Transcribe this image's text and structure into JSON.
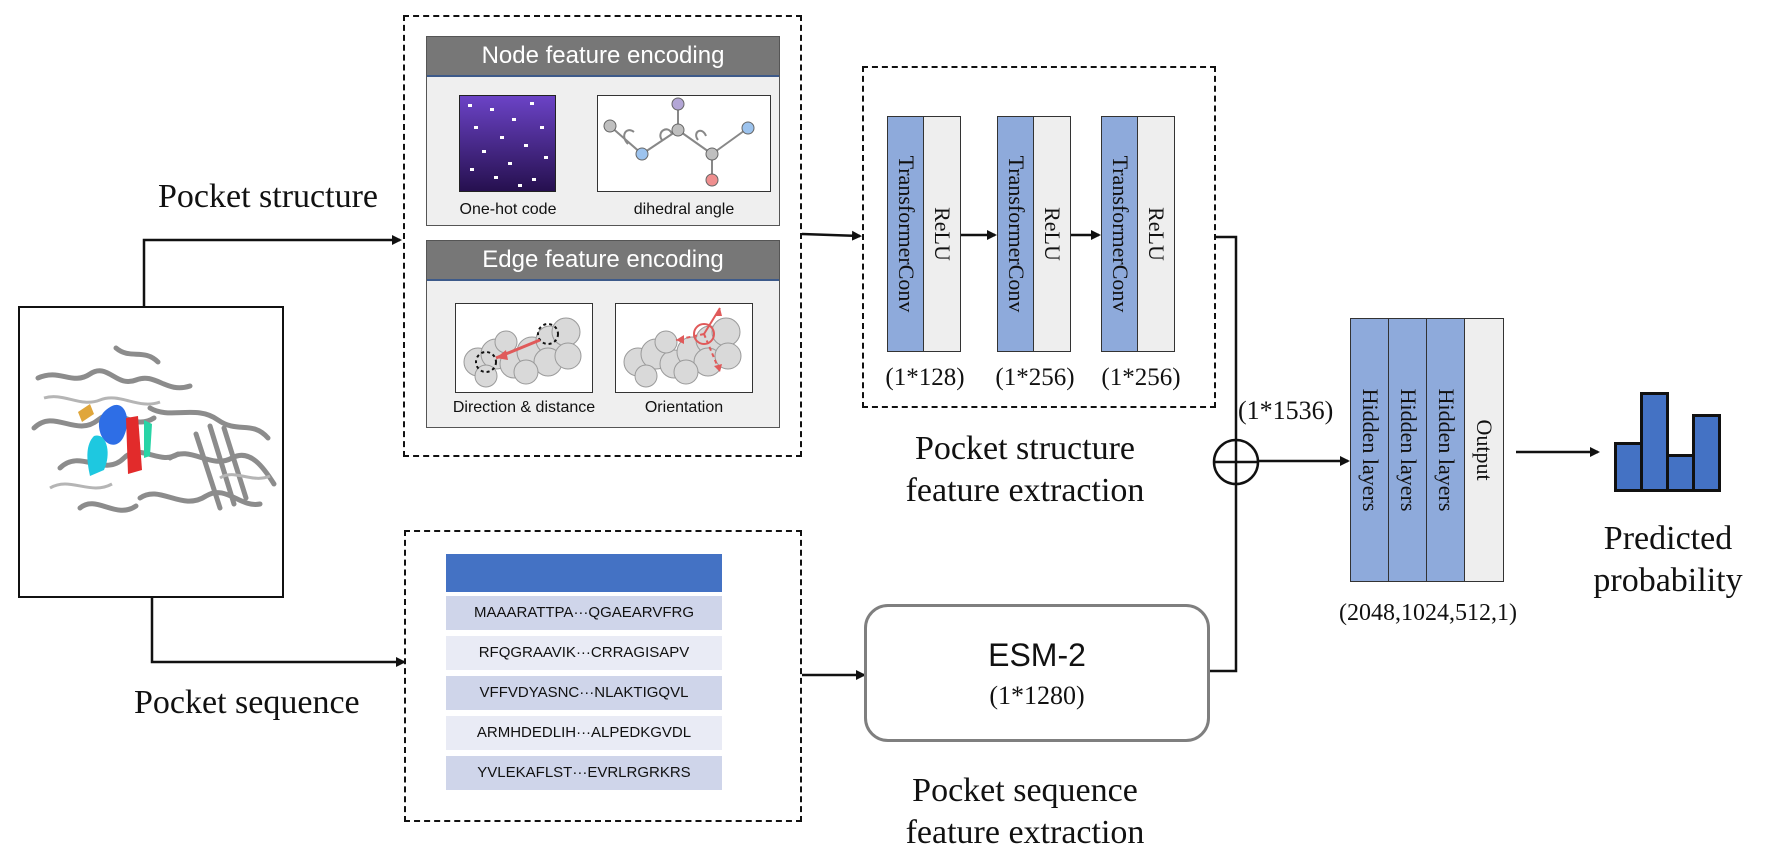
{
  "inputs": {
    "pocket_structure_label": "Pocket structure",
    "pocket_sequence_label": "Pocket sequence"
  },
  "node_encoding": {
    "title": "Node feature encoding",
    "onehot_caption": "One-hot code",
    "dihedral_caption": "dihedral angle"
  },
  "edge_encoding": {
    "title": "Edge feature encoding",
    "direction_caption": "Direction & distance",
    "orientation_caption": "Orientation"
  },
  "structure_extractor": {
    "blocks": [
      {
        "layer": "TransformerConv",
        "activation": "ReLU",
        "dim": "(1*128)"
      },
      {
        "layer": "TransformerConv",
        "activation": "ReLU",
        "dim": "(1*256)"
      },
      {
        "layer": "TransformerConv",
        "activation": "ReLU",
        "dim": "(1*256)"
      }
    ],
    "title_line1": "Pocket structure",
    "title_line2": "feature extraction"
  },
  "sequences": [
    "MAAARATTPA···QGAEARVFRG",
    "RFQGRAAVIK···CRRAGISAPV",
    "VFFVDYASNC···NLAKTIGQVL",
    "ARMHDEDLIH···ALPEDKGVDL",
    "YVLEKAFLST···EVRLRGRKRS"
  ],
  "sequence_extractor": {
    "model": "ESM-2",
    "dim": "(1*1280)",
    "title_line1": "Pocket sequence",
    "title_line2": "feature extraction"
  },
  "fusion": {
    "dim": "(1*1536)"
  },
  "mlp": {
    "layers": [
      "Hidden layers",
      "Hidden layers",
      "Hidden layers",
      "Output"
    ],
    "dims": "(2048,1024,512,1)"
  },
  "output": {
    "line1": "Predicted",
    "line2": "probability",
    "bar_levels": [
      0.5,
      1.0,
      0.38,
      0.78
    ]
  },
  "colors": {
    "block_blue": "#8eaadb",
    "header_blue": "#4472c4",
    "bar_blue": "#4472c4",
    "panel_grey": "#777777"
  }
}
